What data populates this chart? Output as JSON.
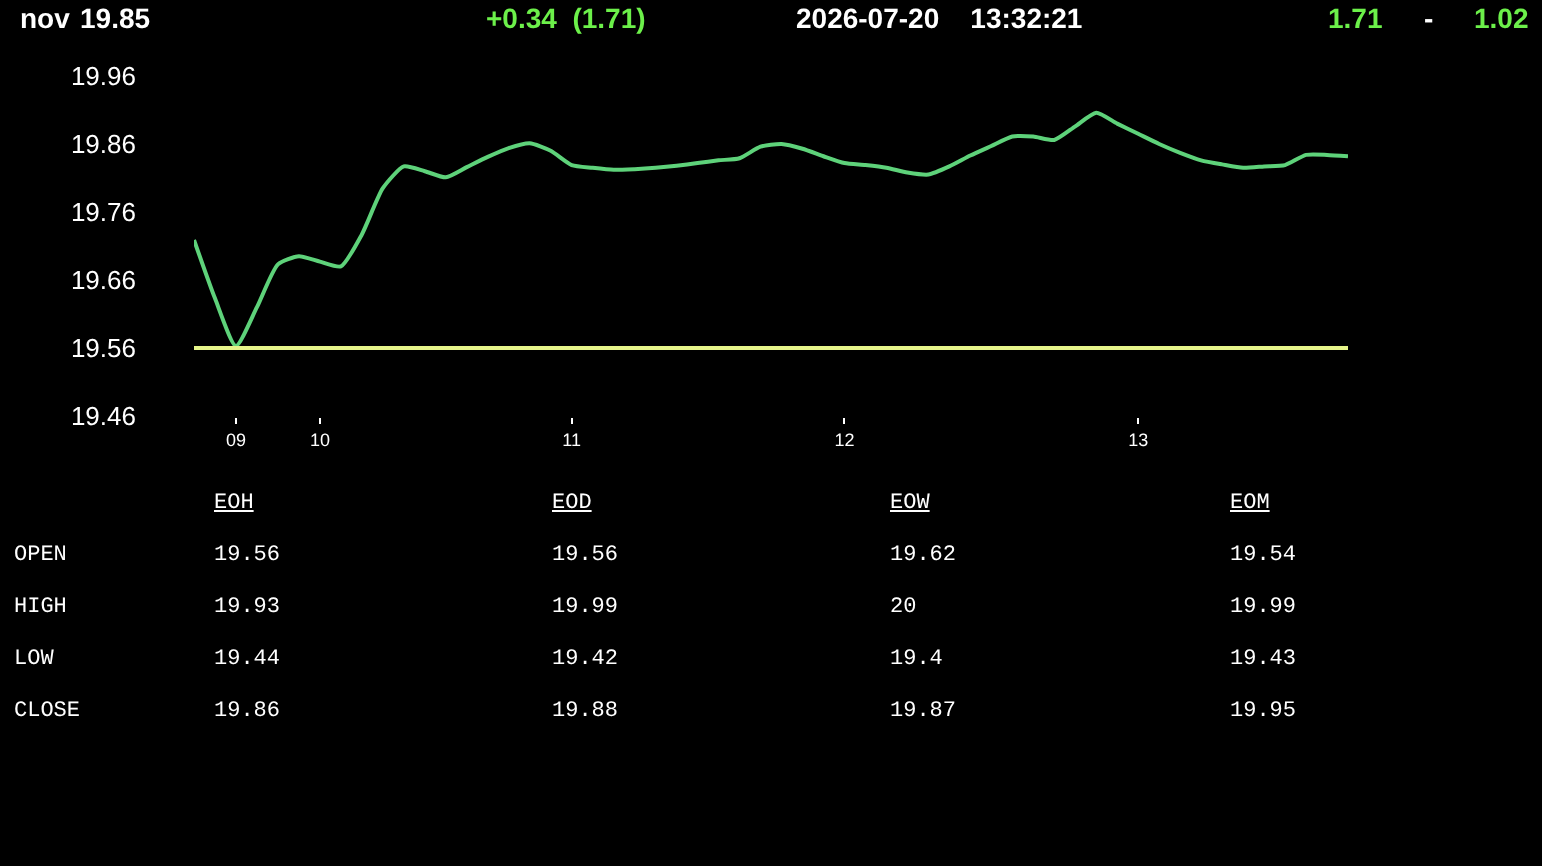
{
  "chart_data": [
    {
      "type": "line",
      "title": "nov",
      "annotations": [
        "19.85",
        "+0.34  (1.71)",
        "2026-07-20    13:32:21",
        "1.71",
        "-",
        "1.02"
      ],
      "categories": [
        null,
        null,
        "09",
        null,
        null,
        null,
        "10",
        null,
        null,
        null,
        null,
        null,
        null,
        null,
        null,
        null,
        null,
        null,
        "11",
        null,
        null,
        null,
        null,
        null,
        null,
        null,
        null,
        null,
        null,
        null,
        null,
        "12",
        null,
        null,
        null,
        null,
        null,
        null,
        null,
        null,
        null,
        null,
        null,
        null,
        null,
        "13",
        null,
        null,
        null,
        null,
        null,
        null,
        null,
        null,
        null,
        null
      ],
      "values": [
        19.719,
        19.633,
        19.563,
        19.62,
        19.683,
        19.695,
        19.687,
        19.68,
        19.727,
        19.795,
        19.827,
        19.82,
        19.811,
        19.826,
        19.841,
        19.854,
        19.861,
        19.85,
        19.829,
        19.825,
        19.822,
        19.823,
        19.825,
        19.828,
        19.832,
        19.836,
        19.839,
        19.856,
        19.86,
        19.853,
        19.842,
        19.832,
        19.829,
        19.825,
        19.818,
        19.815,
        19.827,
        19.843,
        19.857,
        19.871,
        19.871,
        19.866,
        19.886,
        19.906,
        19.89,
        19.875,
        19.86,
        19.847,
        19.836,
        19.83,
        19.825,
        19.827,
        19.829,
        19.844,
        19.844,
        19.842
      ],
      "color": "#5ed27a",
      "ylim": [
        19.46,
        19.96
      ],
      "yticks": [
        19.46,
        19.56,
        19.66,
        19.76,
        19.86,
        19.96
      ],
      "ref_lines": [
        {
          "axis": "y",
          "value": 19.56,
          "color": "#e6f58a"
        }
      ]
    },
    {
      "type": "other",
      "categories": [
        "EOH",
        "EOD",
        "EOW",
        "EOM"
      ],
      "y_categories": [
        "OPEN",
        "HIGH",
        "LOW",
        "CLOSE"
      ],
      "cell_labels": [
        [
          "19.56",
          "19.56",
          "19.62",
          "19.54"
        ],
        [
          "19.93",
          "19.99",
          "20",
          "19.99"
        ],
        [
          "19.44",
          "19.42",
          "19.4",
          "19.43"
        ],
        [
          "19.86",
          "19.88",
          "19.87",
          "19.95"
        ]
      ],
      "data_labels": true
    }
  ]
}
